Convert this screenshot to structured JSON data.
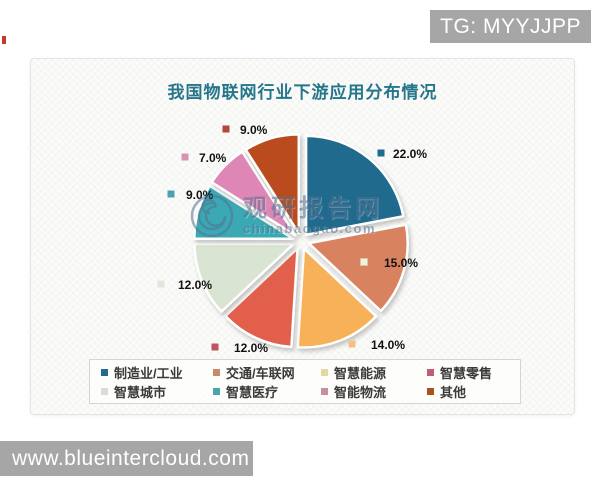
{
  "page": {
    "background": "#ffffff",
    "tg_badge": {
      "text": "TG: MYYJJPP",
      "bg": "#a6a6a6",
      "fg": "#ffffff"
    },
    "site_badge": {
      "text": "www.blueintercloud.com",
      "bg": "#a6a6a6",
      "fg": "#ffffff"
    }
  },
  "watermark": {
    "name": "观研报告网",
    "domain": "chinabaogao.com",
    "color": "#54718f",
    "logo": "swirl-icon"
  },
  "chart_data": {
    "type": "pie",
    "title": "我国物联网行业下游应用分布情况",
    "title_color": "#26768b",
    "exploded": true,
    "start_angle_deg": 0,
    "direction": "clockwise",
    "unit": "%",
    "legend_position": "bottom-box-2-rows-4-cols",
    "slices": [
      {
        "label": "制造业/工业",
        "value": 22.0,
        "display": "22.0%",
        "color": "#1f6a8d",
        "legend_color": "#1f6a8d",
        "marker_color": "#1f6a8d",
        "marker_border": null
      },
      {
        "label": "交通/车联网",
        "value": 15.0,
        "display": "15.0%",
        "color": "#d9825f",
        "legend_color": "#c98a68",
        "marker_color": "#f7eedb",
        "marker_border": "#d9c5a0"
      },
      {
        "label": "智慧能源",
        "value": 14.0,
        "display": "14.0%",
        "color": "#f6b159",
        "legend_color": "#e4d7a2",
        "marker_color": "#f4c084",
        "marker_border": null
      },
      {
        "label": "智慧零售",
        "value": 12.0,
        "display": "12.0%",
        "color": "#e2604b",
        "legend_color": "#c05c74",
        "marker_color": "#bd545e",
        "marker_border": null
      },
      {
        "label": "智慧城市",
        "value": 12.0,
        "display": "12.0%",
        "color": "#d9e4d2",
        "legend_color": "#dcdcd4",
        "marker_color": "#e4e4da",
        "marker_border": null
      },
      {
        "label": "智慧医疗",
        "value": 9.0,
        "display": "9.0%",
        "color": "#3aa9b4",
        "legend_color": "#4aa4ad",
        "marker_color": "#4aa4ad",
        "marker_border": null
      },
      {
        "label": "智能物流",
        "value": 7.0,
        "display": "7.0%",
        "color": "#de86b5",
        "legend_color": "#c48fa4",
        "marker_color": "#d794b2",
        "marker_border": null
      },
      {
        "label": "其他",
        "value": 9.0,
        "display": "9.0%",
        "color": "#b94b1f",
        "legend_color": "#a9521f",
        "marker_color": "#b2473a",
        "marker_border": null
      }
    ]
  }
}
